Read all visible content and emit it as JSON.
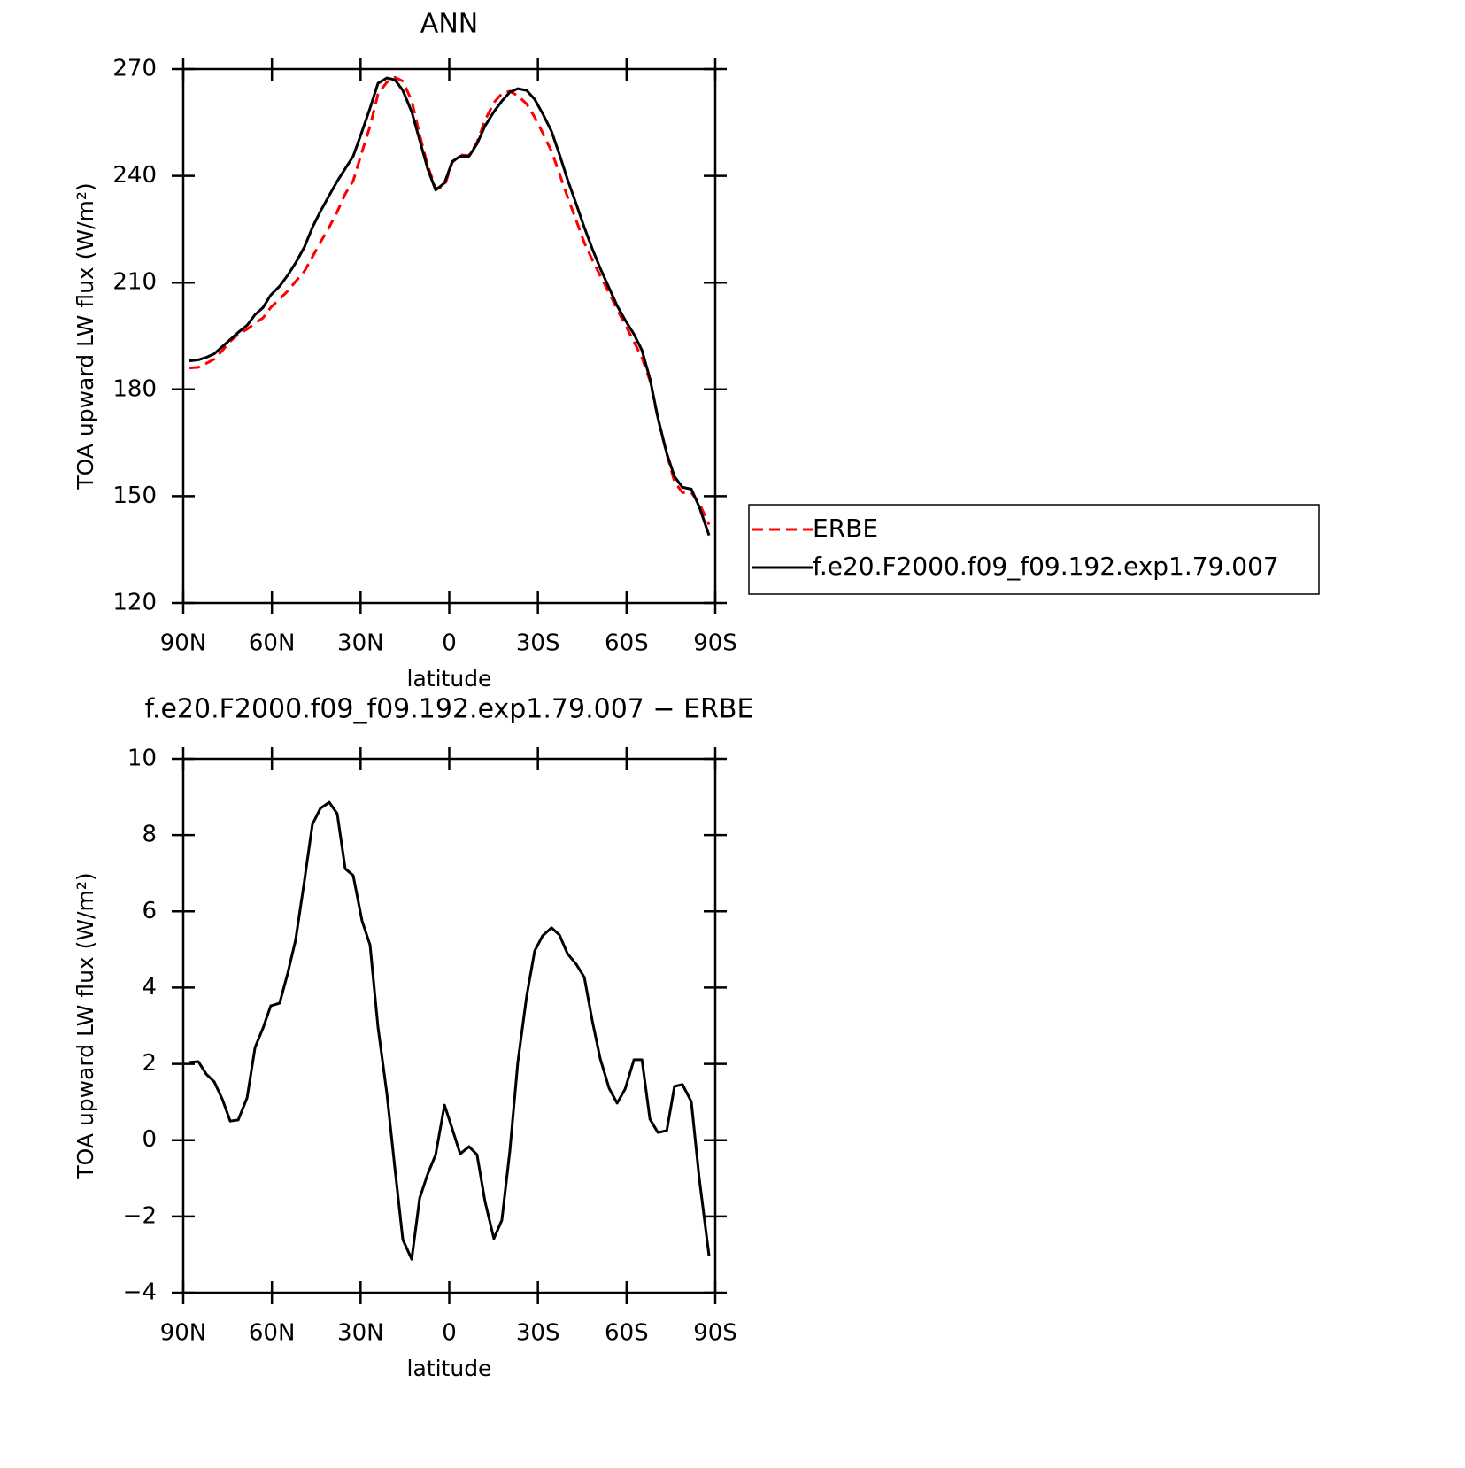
{
  "chart_data": [
    {
      "type": "line",
      "title": "ANN",
      "xlabel": "latitude",
      "ylabel": "TOA upward LW flux (W/m²)",
      "x": [
        87.9,
        84.9,
        82.2,
        79.5,
        76.8,
        74.1,
        71.4,
        68.4,
        65.7,
        63.0,
        60.4,
        57.4,
        54.7,
        52.0,
        49.0,
        46.3,
        43.6,
        40.6,
        37.9,
        35.2,
        32.5,
        29.5,
        26.8,
        24.1,
        21.1,
        18.4,
        15.7,
        12.7,
        10.0,
        7.3,
        4.6,
        1.6,
        -1.0,
        -3.7,
        -6.7,
        -9.4,
        -12.1,
        -15.1,
        -17.8,
        -20.5,
        -23.2,
        -26.2,
        -28.9,
        -31.6,
        -34.6,
        -37.3,
        -40.0,
        -43.0,
        -45.7,
        -48.4,
        -51.1,
        -54.1,
        -56.8,
        -59.5,
        -62.5,
        -65.2,
        -67.9,
        -70.6,
        -73.6,
        -76.2,
        -78.9,
        -81.9,
        -84.6,
        -87.9
      ],
      "series": [
        {
          "name": "ERBE",
          "color": "#ff0000",
          "line_style": "dashed",
          "values": [
            186.0,
            186.2,
            187.3,
            188.5,
            190.9,
            193.5,
            195.5,
            196.9,
            198.6,
            200.1,
            203.0,
            205.4,
            207.6,
            210.3,
            213.2,
            217.2,
            221.3,
            225.6,
            229.9,
            234.9,
            238.6,
            246.8,
            253.9,
            263.0,
            266.3,
            267.7,
            266.6,
            261.1,
            251.5,
            242.9,
            236.4,
            237.1,
            243.7,
            245.9,
            245.7,
            249.4,
            255.6,
            260.6,
            263.1,
            263.8,
            262.5,
            260.2,
            256.5,
            252.1,
            246.9,
            240.6,
            234.1,
            227.4,
            221.2,
            216.4,
            211.9,
            207.1,
            202.5,
            198.2,
            193.4,
            188.9,
            182.5,
            171.8,
            161.8,
            154.1,
            151.0,
            151.0,
            148.0,
            142.0
          ]
        },
        {
          "name": "f.e20.F2000.f09_f09.192.exp1.79.007",
          "color": "#000000",
          "line_style": "solid",
          "values": [
            188,
            188.3,
            189,
            190,
            192,
            194,
            196,
            198,
            201,
            203,
            206.5,
            209,
            212,
            215.5,
            220,
            225.5,
            230,
            234.5,
            238.5,
            242,
            245.5,
            252.5,
            259,
            266,
            267.5,
            267,
            264,
            258,
            250,
            242,
            236,
            238,
            244,
            245.5,
            245.5,
            249,
            254,
            258,
            261,
            263.5,
            264.5,
            264,
            261.5,
            257.5,
            252.5,
            246,
            239,
            232,
            225.5,
            219.5,
            214,
            208.5,
            203.5,
            199.5,
            195.5,
            191,
            183,
            172,
            162,
            155.5,
            152.5,
            152,
            147,
            139
          ]
        }
      ],
      "xlim": [
        90,
        -90
      ],
      "xticks": [
        {
          "value": 90,
          "label": "90N"
        },
        {
          "value": 60,
          "label": "60N"
        },
        {
          "value": 30,
          "label": "30N"
        },
        0,
        {
          "value": -30,
          "label": "30S"
        },
        {
          "value": -60,
          "label": "60S"
        },
        {
          "value": -90,
          "label": "90S"
        }
      ],
      "ylim": [
        120,
        270
      ],
      "yticks": [
        120,
        150,
        180,
        210,
        240,
        270
      ],
      "legend": "outside right"
    },
    {
      "type": "line",
      "title": "f.e20.F2000.f09_f09.192.exp1.79.007 − ERBE",
      "xlabel": "latitude",
      "ylabel": "TOA upward LW flux (W/m²)",
      "x": [
        87.9,
        84.9,
        82.2,
        79.5,
        76.8,
        74.1,
        71.4,
        68.4,
        65.7,
        63.0,
        60.4,
        57.4,
        54.7,
        52.0,
        49.0,
        46.3,
        43.6,
        40.6,
        37.9,
        35.2,
        32.5,
        29.5,
        26.8,
        24.1,
        21.1,
        18.4,
        15.7,
        12.7,
        10.0,
        7.3,
        4.6,
        1.6,
        -1.0,
        -3.7,
        -6.7,
        -9.4,
        -12.1,
        -15.1,
        -17.8,
        -20.5,
        -23.2,
        -26.2,
        -28.9,
        -31.6,
        -34.6,
        -37.3,
        -40.0,
        -43.0,
        -45.7,
        -48.4,
        -51.1,
        -54.1,
        -56.8,
        -59.5,
        -62.5,
        -65.2,
        -67.9,
        -70.6,
        -73.6,
        -76.2,
        -78.9,
        -81.9,
        -84.6,
        -87.9
      ],
      "series": [
        {
          "color": "#000000",
          "line_style": "solid",
          "values": [
            2.04,
            2.06,
            1.73,
            1.53,
            1.08,
            0.5,
            0.53,
            1.11,
            2.43,
            2.94,
            3.52,
            3.59,
            4.36,
            5.24,
            6.8,
            8.28,
            8.7,
            8.86,
            8.56,
            7.12,
            6.94,
            5.75,
            5.12,
            2.96,
            1.22,
            -0.73,
            -2.61,
            -3.12,
            -1.52,
            -0.89,
            -0.38,
            0.92,
            0.3,
            -0.36,
            -0.17,
            -0.38,
            -1.61,
            -2.58,
            -2.1,
            -0.29,
            2.04,
            3.78,
            4.96,
            5.36,
            5.57,
            5.38,
            4.89,
            4.61,
            4.27,
            3.13,
            2.13,
            1.36,
            0.97,
            1.34,
            2.11,
            2.11,
            0.55,
            0.2,
            0.25,
            1.41,
            1.46,
            1.01,
            -1.01,
            -3.03
          ]
        }
      ],
      "xlim": [
        90,
        -90
      ],
      "xticks": [
        {
          "value": 90,
          "label": "90N"
        },
        {
          "value": 60,
          "label": "60N"
        },
        {
          "value": 30,
          "label": "30N"
        },
        0,
        {
          "value": -30,
          "label": "30S"
        },
        {
          "value": -60,
          "label": "60S"
        },
        {
          "value": -90,
          "label": "90S"
        }
      ],
      "ylim": [
        -4,
        10
      ],
      "yticks": [
        {
          "value": -4,
          "label": "−4"
        },
        {
          "value": -2,
          "label": "−2"
        },
        0,
        2,
        4,
        6,
        8,
        10
      ]
    }
  ]
}
